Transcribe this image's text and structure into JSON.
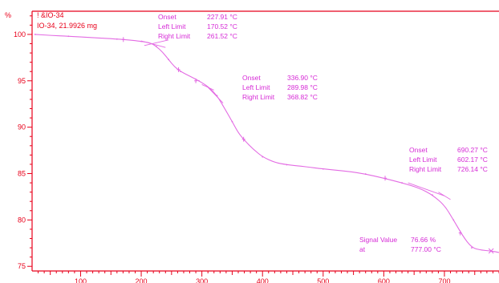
{
  "chart_data": {
    "type": "line",
    "title": "",
    "xlabel": "",
    "ylabel": "%",
    "xlim": [
      20,
      790
    ],
    "ylim": [
      74.5,
      102.5
    ],
    "grid": false,
    "x_ticks": [
      100,
      200,
      300,
      400,
      500,
      600,
      700
    ],
    "y_ticks": [
      75,
      80,
      85,
      90,
      95,
      100
    ],
    "y_ticks_label_suffix": "",
    "legend": {
      "position": "top-left",
      "lines": [
        "! &IO-34",
        "IO-34, 21.9926 mg"
      ]
    },
    "series": [
      {
        "name": "IO-34, 21.9926 mg",
        "color": "#e36be3",
        "points": [
          [
            25,
            100.0
          ],
          [
            50,
            99.9
          ],
          [
            80,
            99.8
          ],
          [
            120,
            99.65
          ],
          [
            160,
            99.5
          ],
          [
            180,
            99.4
          ],
          [
            200,
            99.25
          ],
          [
            215,
            99.1
          ],
          [
            225,
            98.7
          ],
          [
            235,
            98.1
          ],
          [
            245,
            97.3
          ],
          [
            255,
            96.5
          ],
          [
            265,
            96.0
          ],
          [
            280,
            95.5
          ],
          [
            295,
            95.0
          ],
          [
            310,
            94.4
          ],
          [
            325,
            93.4
          ],
          [
            335,
            92.3
          ],
          [
            350,
            90.6
          ],
          [
            360,
            89.4
          ],
          [
            370,
            88.6
          ],
          [
            385,
            87.6
          ],
          [
            400,
            86.8
          ],
          [
            420,
            86.2
          ],
          [
            440,
            85.95
          ],
          [
            470,
            85.75
          ],
          [
            500,
            85.5
          ],
          [
            540,
            85.25
          ],
          [
            570,
            84.95
          ],
          [
            600,
            84.5
          ],
          [
            630,
            84.0
          ],
          [
            660,
            83.4
          ],
          [
            680,
            82.7
          ],
          [
            700,
            81.6
          ],
          [
            715,
            80.0
          ],
          [
            730,
            78.3
          ],
          [
            745,
            77.0
          ],
          [
            760,
            76.75
          ],
          [
            777,
            76.66
          ],
          [
            790,
            76.5
          ]
        ]
      }
    ],
    "annotations": [
      {
        "labels": [
          "Onset",
          "Left Limit",
          "Right Limit"
        ],
        "values": [
          "227.91 °C",
          "170.52 °C",
          "261.52 °C"
        ]
      },
      {
        "labels": [
          "Onset",
          "Left Limit",
          "Right Limit"
        ],
        "values": [
          "336.90 °C",
          "289.98 °C",
          "368.82 °C"
        ]
      },
      {
        "labels": [
          "Onset",
          "Left Limit",
          "Right Limit"
        ],
        "values": [
          "690.27 °C",
          "602.17 °C",
          "726.14 °C"
        ]
      },
      {
        "labels": [
          "Signal Value",
          "at"
        ],
        "values": [
          "76.66 %",
          "777.00 °C"
        ]
      }
    ],
    "markers": [
      {
        "kind": "limit",
        "x": 170.52,
        "y": 99.45
      },
      {
        "kind": "limit",
        "x": 261.52,
        "y": 96.2
      },
      {
        "kind": "limit",
        "x": 289.98,
        "y": 95.0
      },
      {
        "kind": "limit",
        "x": 368.82,
        "y": 88.7
      },
      {
        "kind": "limit",
        "x": 602.17,
        "y": 84.5
      },
      {
        "kind": "limit",
        "x": 726.14,
        "y": 78.6
      },
      {
        "kind": "signal",
        "x": 777.0,
        "y": 76.66
      }
    ],
    "tangents": [
      {
        "from": [
          200,
          99.3
        ],
        "to": [
          240,
          98.6
        ],
        "bfrom": [
          205,
          98.8
        ],
        "bto": [
          245,
          99.4
        ]
      },
      {
        "from": [
          310,
          94.3
        ],
        "to": [
          335,
          92.6
        ],
        "bfrom": [
          300,
          94.6
        ],
        "bto": [
          320,
          94.0
        ]
      },
      {
        "from": [
          640,
          84.0
        ],
        "to": [
          700,
          82.6
        ],
        "bfrom": [
          690,
          83.0
        ],
        "bto": [
          710,
          82.2
        ]
      }
    ]
  },
  "colors": {
    "axis": "#e8001a",
    "curve": "#e36be3",
    "annotation": "#d62bd6",
    "background": "#ffffff"
  }
}
